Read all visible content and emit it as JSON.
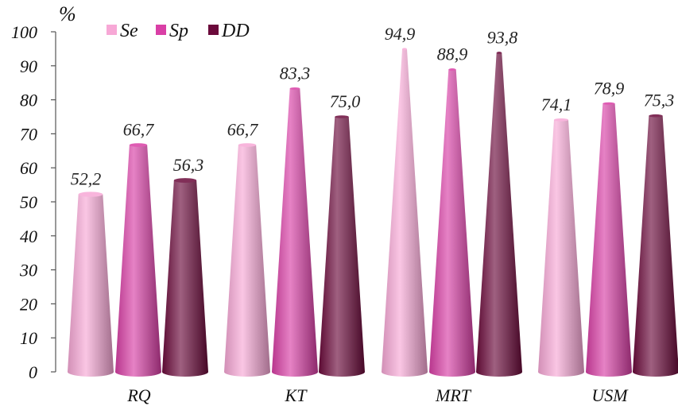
{
  "chart_data": {
    "type": "bar",
    "style": "3d-cone",
    "unit_label": "%",
    "categories": [
      "RQ",
      "KT",
      "MRT",
      "USM"
    ],
    "series": [
      {
        "name": "Se",
        "color": "#f7a8d6",
        "values": [
          52.2,
          66.7,
          94.9,
          74.1
        ],
        "labels": [
          "52,2",
          "66,7",
          "94,9",
          "74,1"
        ]
      },
      {
        "name": "Sp",
        "color": "#d93fa6",
        "values": [
          66.7,
          83.3,
          88.9,
          78.9
        ],
        "labels": [
          "66,7",
          "83,3",
          "88,9",
          "78,9"
        ]
      },
      {
        "name": "DD",
        "color": "#6b0a3b",
        "values": [
          56.3,
          75.0,
          93.8,
          75.3
        ],
        "labels": [
          "56,3",
          "75,0",
          "93,8",
          "75,3"
        ]
      }
    ],
    "ylim": [
      0,
      100
    ],
    "yticks": [
      "0",
      "10",
      "20",
      "30",
      "40",
      "50",
      "60",
      "70",
      "80",
      "90",
      "100"
    ],
    "legend_position": "top-left",
    "grid": false
  }
}
